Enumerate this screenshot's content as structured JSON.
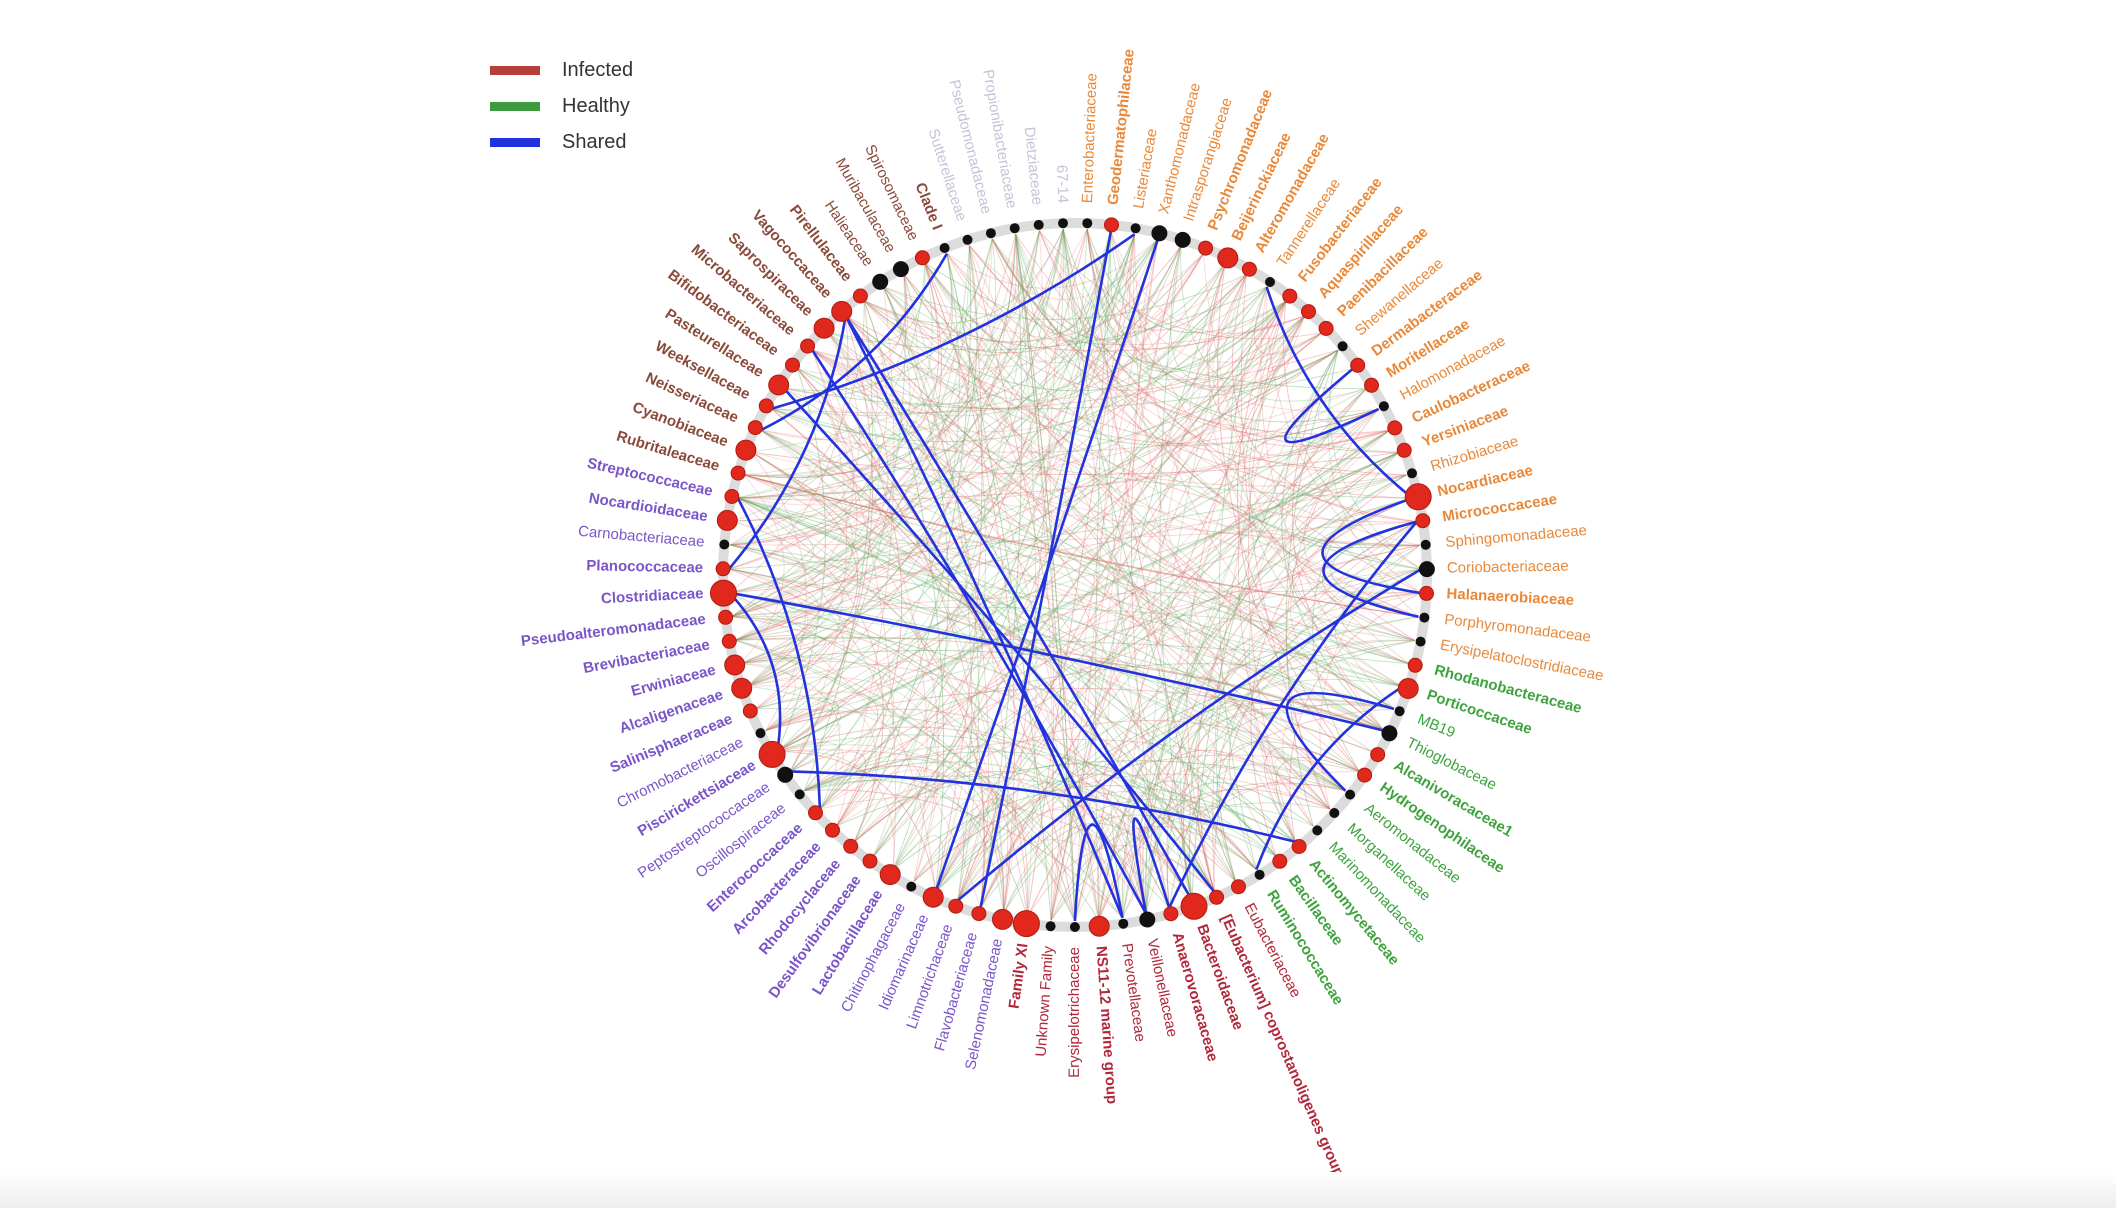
{
  "legend": [
    {
      "label": "Infected",
      "color": "#b5403a"
    },
    {
      "label": "Healthy",
      "color": "#3e9a3e"
    },
    {
      "label": "Shared",
      "color": "#2233dd"
    }
  ],
  "colors": {
    "orange": "#e8893a",
    "brown": "#8a4a3a",
    "purple": "#7b55c8",
    "green": "#3ea33e",
    "red": "#b0283a",
    "faint": "#c8c2d6",
    "node_red": "#e0281c",
    "node_black": "#111111",
    "ring": "#dcdcdc",
    "edge_infected": "#e06a6a",
    "edge_healthy": "#5aa85a",
    "edge_shared": "#2233dd"
  },
  "nodes": [
    {
      "label": "Enterobacteriaceae",
      "group": "orange",
      "bold": false,
      "node": "black",
      "size": 1
    },
    {
      "label": "Geodermatophilaceae",
      "group": "orange",
      "bold": true,
      "node": "red",
      "size": 1
    },
    {
      "label": "Listeriaceae",
      "group": "orange",
      "bold": false,
      "node": "black",
      "size": 1
    },
    {
      "label": "Xanthomonadaceae",
      "group": "orange",
      "bold": false,
      "node": "black",
      "size": 2
    },
    {
      "label": "Intrasporangiaceae",
      "group": "orange",
      "bold": false,
      "node": "black",
      "size": 2
    },
    {
      "label": "Psychromonadaceae",
      "group": "orange",
      "bold": true,
      "node": "red",
      "size": 1
    },
    {
      "label": "Beijerinckiaceae",
      "group": "orange",
      "bold": true,
      "node": "red",
      "size": 2
    },
    {
      "label": "Alteromonadaceae",
      "group": "orange",
      "bold": true,
      "node": "red",
      "size": 1
    },
    {
      "label": "Tannerellaceae",
      "group": "orange",
      "bold": false,
      "node": "black",
      "size": 1
    },
    {
      "label": "Fusobacteriaceae",
      "group": "orange",
      "bold": true,
      "node": "red",
      "size": 1
    },
    {
      "label": "Aquaspirillaceae",
      "group": "orange",
      "bold": true,
      "node": "red",
      "size": 1
    },
    {
      "label": "Paenibacillaceae",
      "group": "orange",
      "bold": true,
      "node": "red",
      "size": 1
    },
    {
      "label": "Shewanellaceae",
      "group": "orange",
      "bold": false,
      "node": "black",
      "size": 1
    },
    {
      "label": "Dermabacteraceae",
      "group": "orange",
      "bold": true,
      "node": "red",
      "size": 1
    },
    {
      "label": "Moritellaceae",
      "group": "orange",
      "bold": true,
      "node": "red",
      "size": 1
    },
    {
      "label": "Halomonadaceae",
      "group": "orange",
      "bold": false,
      "node": "black",
      "size": 1
    },
    {
      "label": "Caulobacteraceae",
      "group": "orange",
      "bold": true,
      "node": "red",
      "size": 1
    },
    {
      "label": "Yersiniaceae",
      "group": "orange",
      "bold": true,
      "node": "red",
      "size": 1
    },
    {
      "label": "Rhizobiaceae",
      "group": "orange",
      "bold": false,
      "node": "black",
      "size": 1
    },
    {
      "label": "Nocardiaceae",
      "group": "orange",
      "bold": true,
      "node": "red",
      "size": 3
    },
    {
      "label": "Micrococcaceae",
      "group": "orange",
      "bold": true,
      "node": "red",
      "size": 1
    },
    {
      "label": "Sphingomonadaceae",
      "group": "orange",
      "bold": false,
      "node": "black",
      "size": 1
    },
    {
      "label": "Coriobacteriaceae",
      "group": "orange",
      "bold": false,
      "node": "black",
      "size": 2
    },
    {
      "label": "Halanaerobiaceae",
      "group": "orange",
      "bold": true,
      "node": "red",
      "size": 1
    },
    {
      "label": "Porphyromonadaceae",
      "group": "orange",
      "bold": false,
      "node": "black",
      "size": 1
    },
    {
      "label": "Erysipelatoclostridiaceae",
      "group": "orange",
      "bold": false,
      "node": "black",
      "size": 1
    },
    {
      "label": "Rhodanobacteraceae",
      "group": "green",
      "bold": true,
      "node": "red",
      "size": 1
    },
    {
      "label": "Porticoccaceae",
      "group": "green",
      "bold": true,
      "node": "red",
      "size": 2
    },
    {
      "label": "MB19",
      "group": "green",
      "bold": false,
      "node": "black",
      "size": 1
    },
    {
      "label": "Thioglobaceae",
      "group": "green",
      "bold": false,
      "node": "black",
      "size": 2
    },
    {
      "label": "Alcanivoracaceae1",
      "group": "green",
      "bold": true,
      "node": "red",
      "size": 1
    },
    {
      "label": "Hydrogenophilaceae",
      "group": "green",
      "bold": true,
      "node": "red",
      "size": 1
    },
    {
      "label": "Aeromonadaceae",
      "group": "green",
      "bold": false,
      "node": "black",
      "size": 1
    },
    {
      "label": "Morganellaceae",
      "group": "green",
      "bold": false,
      "node": "black",
      "size": 1
    },
    {
      "label": "Marinomonadaceae",
      "group": "green",
      "bold": false,
      "node": "black",
      "size": 1
    },
    {
      "label": "Actinomycetaceae",
      "group": "green",
      "bold": true,
      "node": "red",
      "size": 1
    },
    {
      "label": "Bacillaceae",
      "group": "green",
      "bold": true,
      "node": "red",
      "size": 1
    },
    {
      "label": "Ruminococcaceae",
      "group": "green",
      "bold": true,
      "node": "black",
      "size": 1
    },
    {
      "label": "Eubacteriaceae",
      "group": "red",
      "bold": false,
      "node": "red",
      "size": 1
    },
    {
      "label": "[Eubacterium] coprostanoligenes group",
      "group": "red",
      "bold": true,
      "node": "red",
      "size": 1
    },
    {
      "label": "Bacteroidaceae",
      "group": "red",
      "bold": true,
      "node": "red",
      "size": 3
    },
    {
      "label": "Anaerovoracaceae",
      "group": "red",
      "bold": true,
      "node": "red",
      "size": 1
    },
    {
      "label": "Veillonellaceae",
      "group": "red",
      "bold": false,
      "node": "black",
      "size": 2
    },
    {
      "label": "Prevotellaceae",
      "group": "red",
      "bold": false,
      "node": "black",
      "size": 1
    },
    {
      "label": "NS11-12 marine group",
      "group": "red",
      "bold": true,
      "node": "red",
      "size": 2
    },
    {
      "label": "Erysipelotrichaceae",
      "group": "red",
      "bold": false,
      "node": "black",
      "size": 1
    },
    {
      "label": "Unknown Family",
      "group": "red",
      "bold": false,
      "node": "black",
      "size": 1
    },
    {
      "label": "Family XI",
      "group": "red",
      "bold": true,
      "node": "red",
      "size": 3
    },
    {
      "label": "Selenomonadaceae",
      "group": "purple",
      "bold": false,
      "node": "red",
      "size": 2
    },
    {
      "label": "Flavobacteriaceae",
      "group": "purple",
      "bold": false,
      "node": "red",
      "size": 1
    },
    {
      "label": "Limnotrichaceae",
      "group": "purple",
      "bold": false,
      "node": "red",
      "size": 1
    },
    {
      "label": "Idiomarinaceae",
      "group": "purple",
      "bold": false,
      "node": "red",
      "size": 2
    },
    {
      "label": "Chitinophagaceae",
      "group": "purple",
      "bold": false,
      "node": "black",
      "size": 1
    },
    {
      "label": "Lactobacillaceae",
      "group": "purple",
      "bold": true,
      "node": "red",
      "size": 2
    },
    {
      "label": "Desulfovibrionaceae",
      "group": "purple",
      "bold": true,
      "node": "red",
      "size": 1
    },
    {
      "label": "Rhodocyclaceae",
      "group": "purple",
      "bold": true,
      "node": "red",
      "size": 1
    },
    {
      "label": "Arcobacteraceae",
      "group": "purple",
      "bold": true,
      "node": "red",
      "size": 1
    },
    {
      "label": "Enterococcaceae",
      "group": "purple",
      "bold": true,
      "node": "red",
      "size": 1
    },
    {
      "label": "Oscillospiraceae",
      "group": "purple",
      "bold": false,
      "node": "black",
      "size": 1
    },
    {
      "label": "Peptostreptococcaceae",
      "group": "purple",
      "bold": false,
      "node": "black",
      "size": 2
    },
    {
      "label": "Piscirickettsiaceae",
      "group": "purple",
      "bold": true,
      "node": "red",
      "size": 3
    },
    {
      "label": "Chromobacteriaceae",
      "group": "purple",
      "bold": false,
      "node": "black",
      "size": 1
    },
    {
      "label": "Salinisphaeraceae",
      "group": "purple",
      "bold": true,
      "node": "red",
      "size": 1
    },
    {
      "label": "Alcaligenaceae",
      "group": "purple",
      "bold": true,
      "node": "red",
      "size": 2
    },
    {
      "label": "Erwiniaceae",
      "group": "purple",
      "bold": true,
      "node": "red",
      "size": 2
    },
    {
      "label": "Brevibacteriaceae",
      "group": "purple",
      "bold": true,
      "node": "red",
      "size": 1
    },
    {
      "label": "Pseudoalteromonadaceae",
      "group": "purple",
      "bold": true,
      "node": "red",
      "size": 1
    },
    {
      "label": "Clostridiaceae",
      "group": "purple",
      "bold": true,
      "node": "red",
      "size": 3
    },
    {
      "label": "Planococcaceae",
      "group": "purple",
      "bold": true,
      "node": "red",
      "size": 1
    },
    {
      "label": "Carnobacteriaceae",
      "group": "purple",
      "bold": false,
      "node": "black",
      "size": 1
    },
    {
      "label": "Nocardioidaceae",
      "group": "purple",
      "bold": true,
      "node": "red",
      "size": 2
    },
    {
      "label": "Streptococcaceae",
      "group": "purple",
      "bold": true,
      "node": "red",
      "size": 1
    },
    {
      "label": "Rubritaleaceae",
      "group": "brown",
      "bold": true,
      "node": "red",
      "size": 1
    },
    {
      "label": "Cyanobiaceae",
      "group": "brown",
      "bold": true,
      "node": "red",
      "size": 2
    },
    {
      "label": "Neisseriaceae",
      "group": "brown",
      "bold": true,
      "node": "red",
      "size": 1
    },
    {
      "label": "Weeksellaceae",
      "group": "brown",
      "bold": true,
      "node": "red",
      "size": 1
    },
    {
      "label": "Pasteurellaceae",
      "group": "brown",
      "bold": true,
      "node": "red",
      "size": 2
    },
    {
      "label": "Bifidobacteriaceae",
      "group": "brown",
      "bold": true,
      "node": "red",
      "size": 1
    },
    {
      "label": "Microbacteriaceae",
      "group": "brown",
      "bold": true,
      "node": "red",
      "size": 1
    },
    {
      "label": "Saprospiraceae",
      "group": "brown",
      "bold": true,
      "node": "red",
      "size": 2
    },
    {
      "label": "Vagococcaceae",
      "group": "brown",
      "bold": true,
      "node": "red",
      "size": 2
    },
    {
      "label": "Pirellulaceae",
      "group": "brown",
      "bold": true,
      "node": "red",
      "size": 1
    },
    {
      "label": "Halieaceae",
      "group": "brown",
      "bold": false,
      "node": "black",
      "size": 2
    },
    {
      "label": "Muribaculaceae",
      "group": "brown",
      "bold": false,
      "node": "black",
      "size": 2
    },
    {
      "label": "Spirosomaceae",
      "group": "brown",
      "bold": false,
      "node": "red",
      "size": 1
    },
    {
      "label": "Clade I",
      "group": "brown",
      "bold": true,
      "node": "black",
      "size": 1
    },
    {
      "label": "Sutterellaceae",
      "group": "faint",
      "bold": false,
      "node": "black",
      "size": 1
    },
    {
      "label": "Pseudomonadaceae",
      "group": "faint",
      "bold": false,
      "node": "black",
      "size": 1
    },
    {
      "label": "Propionibacteriaceae",
      "group": "faint",
      "bold": false,
      "node": "black",
      "size": 1
    },
    {
      "label": "Dietziaceae",
      "group": "faint",
      "bold": false,
      "node": "black",
      "size": 1
    },
    {
      "label": "67-14",
      "group": "faint",
      "bold": false,
      "node": "black",
      "size": 1
    }
  ],
  "shared_edges": [
    [
      "Geodermatophilaceae",
      "Flavobacteriaceae"
    ],
    [
      "Listeriaceae",
      "Weeksellaceae"
    ],
    [
      "Xanthomonadaceae",
      "Idiomarinaceae"
    ],
    [
      "Tannerellaceae",
      "Nocardiaceae"
    ],
    [
      "Halomonadaceae",
      "Dermabacteraceae"
    ],
    [
      "Micrococcaceae",
      "Porphyromonadaceae"
    ],
    [
      "Micrococcaceae",
      "Anaerovoracaceae"
    ],
    [
      "Coriobacteriaceae",
      "Limnotrichaceae"
    ],
    [
      "Nocardiaceae",
      "Halanaerobiaceae"
    ],
    [
      "Porticoccaceae",
      "Ruminococcaceae"
    ],
    [
      "MB19",
      "Aeromonadaceae"
    ],
    [
      "Actinomycetaceae",
      "Peptostreptococcaceae"
    ],
    [
      "Vagococcaceae",
      "Bacteroidaceae"
    ],
    [
      "Vagococcaceae",
      "Prevotellaceae"
    ],
    [
      "Vagococcaceae",
      "Planococcaceae"
    ],
    [
      "Microbacteriaceae",
      "Veillonellaceae"
    ],
    [
      "Clostridiaceae",
      "Thioglobaceae"
    ],
    [
      "Streptococcaceae",
      "Enterococcaceae"
    ],
    [
      "Clostridiaceae",
      "Piscirickettsiaceae"
    ],
    [
      "Clade I",
      "Neisseriaceae"
    ],
    [
      "Erysipelotrichaceae",
      "Prevotellaceae"
    ],
    [
      "Anaerovoracaceae",
      "Veillonellaceae"
    ],
    [
      "Pasteurellaceae",
      "[Eubacterium] coprostanoligenes group"
    ]
  ]
}
